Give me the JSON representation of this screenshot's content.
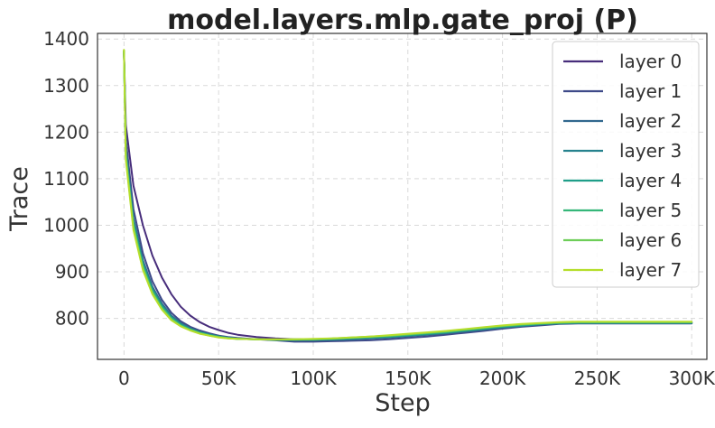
{
  "chart_data": {
    "type": "line",
    "title": "model.layers.mlp.gate_proj (P)",
    "xlabel": "Step",
    "ylabel": "Trace",
    "xlim": [
      -14000,
      308000
    ],
    "ylim": [
      712,
      1412
    ],
    "xticks": [
      0,
      50000,
      100000,
      150000,
      200000,
      250000,
      300000
    ],
    "xtick_labels": [
      "0",
      "50K",
      "100K",
      "150K",
      "200K",
      "250K",
      "300K"
    ],
    "yticks": [
      800,
      900,
      1000,
      1100,
      1200,
      1300,
      1400
    ],
    "ytick_labels": [
      "800",
      "900",
      "1000",
      "1100",
      "1200",
      "1300",
      "1400"
    ],
    "grid": true,
    "legend_position": "top-right",
    "series": [
      {
        "name": "layer 0",
        "color": "#472d7b",
        "x": [
          0,
          1000,
          5000,
          10000,
          15000,
          20000,
          25000,
          30000,
          35000,
          40000,
          45000,
          50000,
          55000,
          60000,
          70000,
          80000,
          90000,
          100000,
          110000,
          120000,
          130000,
          140000,
          150000,
          160000,
          170000,
          180000,
          190000,
          200000,
          210000,
          220000,
          230000,
          240000,
          260000,
          280000,
          300000
        ],
        "y": [
          1375,
          1215,
          1085,
          1000,
          935,
          888,
          852,
          825,
          806,
          792,
          782,
          775,
          769,
          765,
          760,
          757,
          755,
          755,
          755,
          756,
          757,
          759,
          762,
          765,
          768,
          771,
          775,
          779,
          783,
          786,
          789,
          790,
          790,
          790,
          790
        ]
      },
      {
        "name": "layer 1",
        "color": "#3e4a89",
        "x": [
          0,
          1000,
          5000,
          10000,
          15000,
          20000,
          25000,
          30000,
          35000,
          40000,
          45000,
          50000,
          55000,
          60000,
          70000,
          80000,
          90000,
          100000,
          110000,
          120000,
          130000,
          140000,
          150000,
          160000,
          170000,
          180000,
          190000,
          200000,
          210000,
          220000,
          230000,
          240000,
          260000,
          280000,
          300000
        ],
        "y": [
          1370,
          1185,
          1035,
          940,
          880,
          840,
          812,
          794,
          782,
          774,
          768,
          763,
          760,
          758,
          755,
          753,
          750,
          750,
          751,
          752,
          753,
          755,
          758,
          761,
          765,
          769,
          773,
          778,
          782,
          785,
          788,
          789,
          789,
          789,
          789
        ]
      },
      {
        "name": "layer 2",
        "color": "#31688e",
        "x": [
          0,
          1000,
          5000,
          10000,
          15000,
          20000,
          25000,
          30000,
          35000,
          40000,
          45000,
          50000,
          55000,
          60000,
          70000,
          80000,
          90000,
          100000,
          110000,
          120000,
          130000,
          140000,
          150000,
          160000,
          170000,
          180000,
          190000,
          200000,
          210000,
          220000,
          230000,
          240000,
          260000,
          280000,
          300000
        ],
        "y": [
          1372,
          1165,
          1015,
          925,
          868,
          832,
          806,
          790,
          779,
          771,
          766,
          762,
          759,
          757,
          755,
          754,
          753,
          753,
          754,
          755,
          757,
          759,
          762,
          765,
          768,
          772,
          776,
          780,
          784,
          787,
          789,
          790,
          790,
          790,
          790
        ]
      },
      {
        "name": "layer 3",
        "color": "#26828e",
        "x": [
          0,
          1000,
          5000,
          10000,
          15000,
          20000,
          25000,
          30000,
          35000,
          40000,
          45000,
          50000,
          55000,
          60000,
          70000,
          80000,
          90000,
          100000,
          110000,
          120000,
          130000,
          140000,
          150000,
          160000,
          170000,
          180000,
          190000,
          200000,
          210000,
          220000,
          230000,
          240000,
          260000,
          280000,
          300000
        ],
        "y": [
          1373,
          1160,
          1010,
          920,
          864,
          829,
          804,
          788,
          778,
          770,
          765,
          761,
          758,
          756,
          755,
          754,
          754,
          754,
          755,
          756,
          758,
          760,
          763,
          766,
          769,
          773,
          777,
          781,
          784,
          787,
          789,
          790,
          790,
          790,
          790
        ]
      },
      {
        "name": "layer 4",
        "color": "#1f9e89",
        "x": [
          0,
          1000,
          5000,
          10000,
          15000,
          20000,
          25000,
          30000,
          35000,
          40000,
          45000,
          50000,
          55000,
          60000,
          70000,
          80000,
          90000,
          100000,
          110000,
          120000,
          130000,
          140000,
          150000,
          160000,
          170000,
          180000,
          190000,
          200000,
          210000,
          220000,
          230000,
          240000,
          260000,
          280000,
          300000
        ],
        "y": [
          1374,
          1155,
          1005,
          916,
          861,
          826,
          802,
          787,
          777,
          770,
          765,
          761,
          758,
          756,
          755,
          754,
          754,
          754,
          755,
          757,
          759,
          761,
          764,
          767,
          770,
          774,
          778,
          782,
          785,
          788,
          790,
          791,
          791,
          791,
          791
        ]
      },
      {
        "name": "layer 5",
        "color": "#35b779",
        "x": [
          0,
          1000,
          5000,
          10000,
          15000,
          20000,
          25000,
          30000,
          35000,
          40000,
          45000,
          50000,
          55000,
          60000,
          70000,
          80000,
          90000,
          100000,
          110000,
          120000,
          130000,
          140000,
          150000,
          160000,
          170000,
          180000,
          190000,
          200000,
          210000,
          220000,
          230000,
          240000,
          260000,
          280000,
          300000
        ],
        "y": [
          1375,
          1150,
          1000,
          912,
          858,
          824,
          800,
          785,
          776,
          769,
          764,
          760,
          758,
          756,
          755,
          754,
          754,
          755,
          756,
          758,
          760,
          762,
          765,
          768,
          771,
          775,
          779,
          783,
          786,
          789,
          791,
          792,
          792,
          792,
          792
        ]
      },
      {
        "name": "layer 6",
        "color": "#6ece58",
        "x": [
          0,
          1000,
          5000,
          10000,
          15000,
          20000,
          25000,
          30000,
          35000,
          40000,
          45000,
          50000,
          55000,
          60000,
          70000,
          80000,
          90000,
          100000,
          110000,
          120000,
          130000,
          140000,
          150000,
          160000,
          170000,
          180000,
          190000,
          200000,
          210000,
          220000,
          230000,
          240000,
          260000,
          280000,
          300000
        ],
        "y": [
          1376,
          1145,
          995,
          908,
          855,
          821,
          798,
          784,
          775,
          768,
          763,
          760,
          757,
          756,
          755,
          754,
          755,
          755,
          757,
          759,
          761,
          763,
          766,
          769,
          772,
          776,
          780,
          784,
          787,
          789,
          791,
          792,
          792,
          792,
          792
        ]
      },
      {
        "name": "layer 7",
        "color": "#b5de2b",
        "x": [
          0,
          1000,
          5000,
          10000,
          15000,
          20000,
          25000,
          30000,
          35000,
          40000,
          45000,
          50000,
          55000,
          60000,
          70000,
          80000,
          90000,
          100000,
          110000,
          120000,
          130000,
          140000,
          150000,
          160000,
          170000,
          180000,
          190000,
          200000,
          210000,
          220000,
          230000,
          240000,
          260000,
          280000,
          300000
        ],
        "y": [
          1377,
          1140,
          990,
          904,
          852,
          819,
          796,
          783,
          774,
          767,
          763,
          759,
          757,
          756,
          755,
          755,
          755,
          756,
          757,
          759,
          761,
          764,
          767,
          770,
          773,
          777,
          781,
          785,
          788,
          790,
          792,
          793,
          793,
          793,
          793
        ]
      }
    ]
  }
}
